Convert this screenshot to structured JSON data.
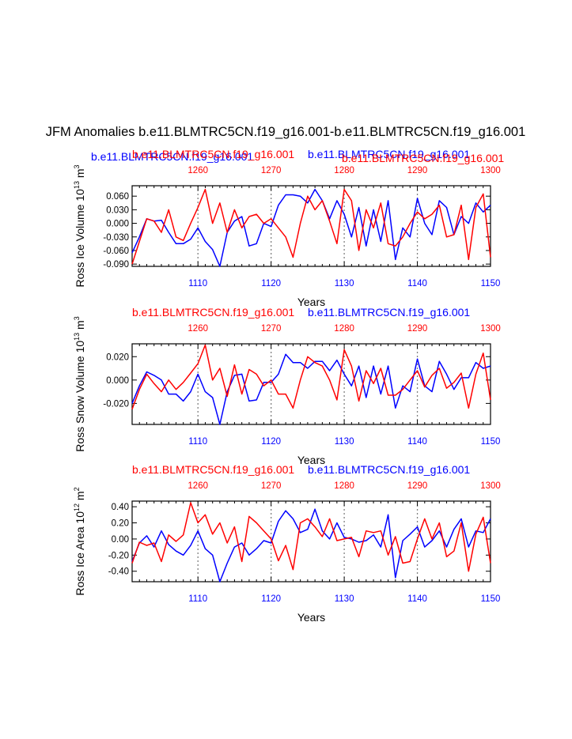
{
  "page_title": "JFM Anomalies b.e11.BLMTRC5CN.f19_g16.001-b.e11.BLMTRC5CN.f19_g16.001",
  "colors": {
    "series_a": "#0000ff",
    "series_b": "#ff0000",
    "axis": "#000000",
    "grid": "#808080"
  },
  "chart_data": [
    {
      "type": "line",
      "id": "ice-volume",
      "ylabel": "Ross Ice Volume",
      "yunit_base": "10",
      "yunit_exp": "13",
      "yunit_suffix": "m",
      "yunit_suffix_exp": "3",
      "xlabel": "Years",
      "ylim": [
        -0.095,
        0.083
      ],
      "yticks": [
        0.06,
        0.03,
        0.0,
        -0.03,
        -0.06,
        -0.09
      ],
      "yticklabels": [
        "0.060",
        "0.030",
        "0.000",
        "-0.030",
        "-0.060",
        "-0.090"
      ],
      "x_bottom": {
        "range": [
          1101,
          1150
        ],
        "ticks": [
          1110,
          1120,
          1130,
          1140,
          1150
        ],
        "color": "#0000ff"
      },
      "x_top": {
        "range": [
          1251,
          1300
        ],
        "ticks": [
          1260,
          1270,
          1280,
          1290,
          1300
        ],
        "color": "#ff0000"
      },
      "gridlines_x": [
        1110,
        1120,
        1130,
        1140
      ],
      "left_title": "b.e11.BLMTRC5CN.f19_g16.001",
      "left_title_color": "#0000ff",
      "center_title": "b.e11.BLMTRC5CN.f19_g16.001",
      "center_title_color": "#ff0000",
      "right_title": "b.e11.BLMTRC5CN.f19_g16.001",
      "right_title_color": "#0000ff",
      "right_title2": "b.e11.BLMTRC5CN.f19_g16.001",
      "right_title2_color": "#ff0000",
      "series": [
        {
          "name": "blue",
          "color": "#0000ff",
          "values": [
            -0.065,
            -0.03,
            0.01,
            0.005,
            0.007,
            -0.02,
            -0.045,
            -0.045,
            -0.035,
            -0.01,
            -0.04,
            -0.058,
            -0.095,
            -0.02,
            0.005,
            0.015,
            -0.05,
            -0.045,
            0.0,
            -0.007,
            0.04,
            0.063,
            0.063,
            0.06,
            0.045,
            0.075,
            0.05,
            0.01,
            0.05,
            0.02,
            -0.03,
            0.035,
            -0.05,
            0.03,
            -0.04,
            0.05,
            -0.08,
            -0.01,
            -0.03,
            0.055,
            0.0,
            -0.025,
            0.05,
            0.035,
            -0.025,
            0.015,
            0.0,
            0.045,
            0.025,
            0.04
          ]
        },
        {
          "name": "red",
          "color": "#ff0000",
          "values": [
            -0.09,
            -0.04,
            0.01,
            0.005,
            -0.02,
            0.03,
            -0.03,
            -0.038,
            0.0,
            0.035,
            0.075,
            0.0,
            0.045,
            -0.02,
            0.03,
            -0.01,
            0.015,
            0.02,
            0.0,
            0.01,
            -0.01,
            -0.03,
            -0.075,
            0.0,
            0.06,
            0.03,
            0.05,
            0.005,
            -0.045,
            0.075,
            0.05,
            -0.06,
            0.03,
            -0.01,
            0.045,
            -0.045,
            -0.05,
            -0.03,
            0.0,
            0.025,
            0.01,
            0.02,
            0.04,
            -0.03,
            -0.025,
            0.04,
            -0.08,
            0.035,
            0.065,
            -0.075
          ]
        }
      ]
    },
    {
      "type": "line",
      "id": "snow-volume",
      "ylabel": "Ross Snow Volume",
      "yunit_base": "10",
      "yunit_exp": "13",
      "yunit_suffix": "m",
      "yunit_suffix_exp": "3",
      "xlabel": "Years",
      "ylim": [
        -0.038,
        0.031
      ],
      "yticks": [
        0.02,
        0.0,
        -0.02
      ],
      "yticklabels": [
        "0.020",
        "0.000",
        "-0.020"
      ],
      "x_bottom": {
        "range": [
          1101,
          1150
        ],
        "ticks": [
          1110,
          1120,
          1130,
          1140,
          1150
        ],
        "color": "#0000ff"
      },
      "x_top": {
        "range": [
          1251,
          1300
        ],
        "ticks": [
          1260,
          1270,
          1280,
          1290,
          1300
        ],
        "color": "#ff0000"
      },
      "gridlines_x": [
        1110,
        1120,
        1130,
        1140
      ],
      "center_title": "b.e11.BLMTRC5CN.f19_g16.001",
      "center_title_color": "#ff0000",
      "right_title": "b.e11.BLMTRC5CN.f19_g16.001",
      "right_title_color": "#0000ff",
      "series": [
        {
          "name": "blue",
          "color": "#0000ff",
          "values": [
            -0.02,
            -0.005,
            0.007,
            0.004,
            0.0,
            -0.012,
            -0.012,
            -0.018,
            -0.01,
            0.005,
            -0.01,
            -0.015,
            -0.038,
            -0.01,
            0.004,
            0.005,
            -0.018,
            -0.017,
            -0.002,
            -0.002,
            0.005,
            0.022,
            0.015,
            0.015,
            0.01,
            0.016,
            0.016,
            0.008,
            0.017,
            0.005,
            -0.005,
            0.012,
            -0.015,
            0.012,
            -0.012,
            0.012,
            -0.024,
            -0.005,
            -0.01,
            0.018,
            -0.005,
            -0.01,
            0.016,
            0.005,
            -0.008,
            0.002,
            0.002,
            0.015,
            0.01,
            0.012
          ]
        },
        {
          "name": "red",
          "color": "#ff0000",
          "values": [
            -0.025,
            -0.008,
            0.005,
            -0.003,
            -0.01,
            0.0,
            -0.008,
            -0.002,
            0.006,
            0.014,
            0.03,
            0.0,
            0.01,
            -0.014,
            0.013,
            -0.012,
            0.009,
            0.005,
            -0.005,
            0.0,
            -0.012,
            -0.012,
            -0.024,
            0.0,
            0.02,
            0.015,
            0.012,
            0.0,
            -0.017,
            0.026,
            0.012,
            -0.018,
            0.008,
            -0.003,
            0.01,
            -0.013,
            -0.013,
            -0.008,
            0.0,
            0.008,
            -0.006,
            0.004,
            0.01,
            -0.007,
            -0.002,
            0.006,
            -0.024,
            0.005,
            0.023,
            -0.017
          ]
        }
      ]
    },
    {
      "type": "line",
      "id": "ice-area",
      "ylabel": "Ross Ice Area",
      "yunit_base": "10",
      "yunit_exp": "12",
      "yunit_suffix": "m",
      "yunit_suffix_exp": "2",
      "xlabel": "Years",
      "ylim": [
        -0.53,
        0.47
      ],
      "yticks": [
        0.4,
        0.2,
        0.0,
        -0.2,
        -0.4
      ],
      "yticklabels": [
        "0.40",
        "0.20",
        "0.00",
        "-0.20",
        "-0.40"
      ],
      "x_bottom": {
        "range": [
          1101,
          1150
        ],
        "ticks": [
          1110,
          1120,
          1130,
          1140,
          1150
        ],
        "color": "#0000ff"
      },
      "x_top": {
        "range": [
          1251,
          1300
        ],
        "ticks": [
          1260,
          1270,
          1280,
          1290,
          1300
        ],
        "color": "#ff0000"
      },
      "gridlines_x": [
        1110,
        1120,
        1130,
        1140
      ],
      "center_title": "b.e11.BLMTRC5CN.f19_g16.001",
      "center_title_color": "#ff0000",
      "right_title": "b.e11.BLMTRC5CN.f19_g16.001",
      "right_title_color": "#0000ff",
      "series": [
        {
          "name": "blue",
          "color": "#0000ff",
          "values": [
            -0.28,
            -0.05,
            0.04,
            -0.1,
            0.1,
            -0.07,
            -0.15,
            -0.2,
            -0.08,
            0.1,
            -0.12,
            -0.2,
            -0.53,
            -0.3,
            -0.1,
            -0.05,
            -0.2,
            -0.12,
            -0.02,
            -0.05,
            0.22,
            0.35,
            0.25,
            0.08,
            0.12,
            0.37,
            0.1,
            0.0,
            0.2,
            0.02,
            0.0,
            -0.04,
            -0.02,
            0.05,
            -0.1,
            0.3,
            -0.48,
            -0.02,
            0.06,
            0.15,
            -0.1,
            -0.02,
            0.1,
            -0.1,
            0.12,
            0.25,
            -0.1,
            0.1,
            0.08,
            0.25
          ]
        },
        {
          "name": "red",
          "color": "#ff0000",
          "values": [
            -0.3,
            -0.04,
            -0.08,
            -0.05,
            -0.28,
            0.05,
            -0.03,
            0.05,
            0.45,
            0.2,
            0.3,
            0.06,
            0.2,
            -0.05,
            0.15,
            -0.28,
            0.28,
            0.2,
            0.1,
            0.0,
            -0.27,
            -0.08,
            -0.38,
            0.2,
            0.25,
            0.15,
            0.03,
            0.25,
            -0.02,
            0.0,
            0.02,
            -0.22,
            0.1,
            0.08,
            0.1,
            -0.2,
            0.03,
            -0.3,
            -0.28,
            0.0,
            0.25,
            0.0,
            0.2,
            -0.22,
            -0.15,
            0.2,
            -0.4,
            0.06,
            0.27,
            -0.3
          ]
        }
      ]
    }
  ]
}
